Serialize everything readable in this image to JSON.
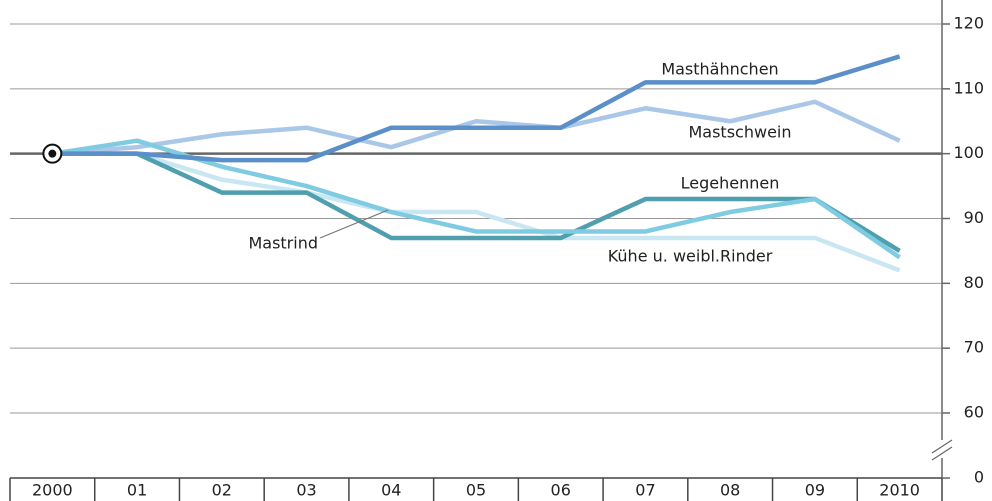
{
  "chart_data": {
    "type": "line",
    "categories": [
      "2000",
      "01",
      "02",
      "03",
      "04",
      "05",
      "06",
      "07",
      "08",
      "09",
      "2010"
    ],
    "series": [
      {
        "name": "Masthähnchen",
        "color": "#5b8fc9",
        "values": [
          100,
          100,
          99,
          99,
          104,
          104,
          104,
          111,
          111,
          111,
          115
        ]
      },
      {
        "name": "Mastschwein",
        "color": "#aac7e8",
        "values": [
          100,
          101,
          103,
          104,
          101,
          105,
          104,
          107,
          105,
          108,
          102
        ]
      },
      {
        "name": "Legehennen",
        "color": "#4f9fae",
        "values": [
          100,
          100,
          94,
          94,
          87,
          87,
          87,
          93,
          93,
          93,
          85
        ]
      },
      {
        "name": "Mastrind",
        "color": "#7fcbe2",
        "values": [
          100,
          102,
          98,
          95,
          91,
          88,
          88,
          88,
          91,
          93,
          84
        ]
      },
      {
        "name": "Kühe u. weibl.Rinder",
        "color": "#c9e7f3",
        "values": [
          100,
          100,
          96,
          94,
          91,
          91,
          87,
          87,
          87,
          87,
          82
        ]
      }
    ],
    "ylim": [
      0,
      120
    ],
    "yticks": [
      0,
      60,
      70,
      80,
      90,
      100,
      110,
      120
    ],
    "y_axis_break": true,
    "grid": true
  }
}
